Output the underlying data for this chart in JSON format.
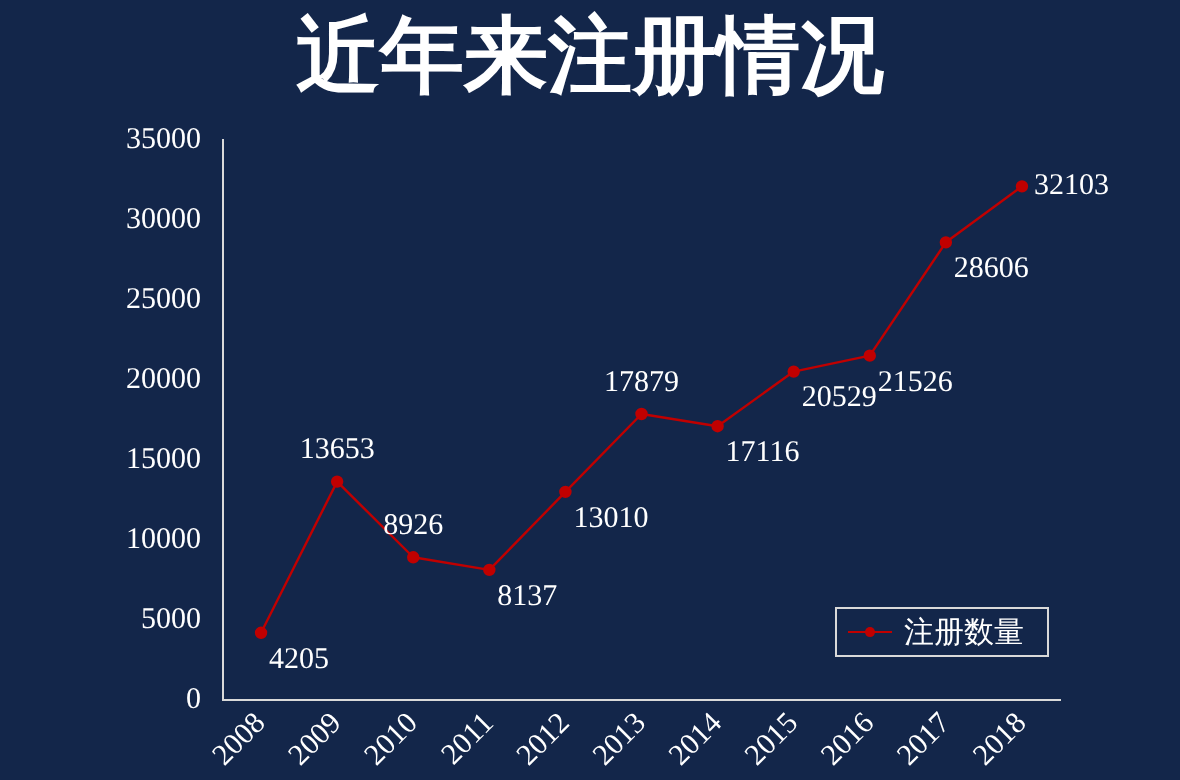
{
  "chart_data": {
    "type": "line",
    "title": "近年来注册情况",
    "categories": [
      "2008",
      "2009",
      "2010",
      "2011",
      "2012",
      "2013",
      "2014",
      "2015",
      "2016",
      "2017",
      "2018"
    ],
    "series": [
      {
        "name": "注册数量",
        "color": "#c00000",
        "values": [
          4205,
          13653,
          8926,
          8137,
          13010,
          17879,
          17116,
          20529,
          21526,
          28606,
          32103
        ]
      }
    ],
    "ylim": [
      0,
      35000
    ],
    "yticks": [
      0,
      5000,
      10000,
      15000,
      20000,
      25000,
      30000,
      35000
    ],
    "grid": false,
    "legend": "bottom right",
    "marker": "circle",
    "line_style": "solid",
    "data_labels": true
  }
}
